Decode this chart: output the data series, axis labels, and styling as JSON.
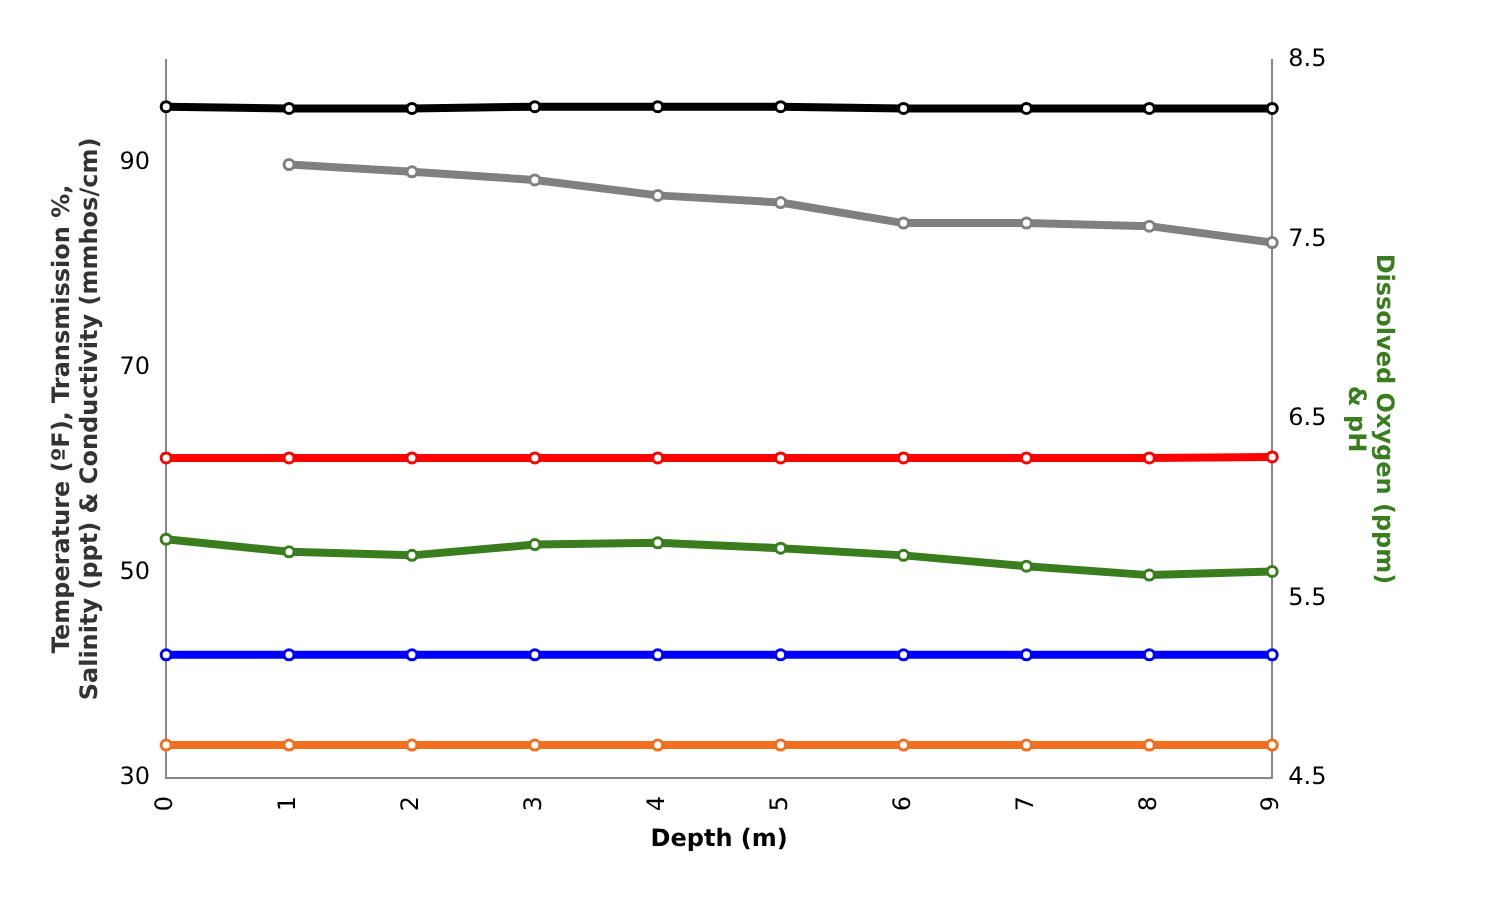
{
  "chart_data": {
    "type": "line",
    "xlabel": "Depth (m)",
    "ylabel": "Temperature (ºF), Transmission %,\nSalinity (ppt) & Conductivity (mmhos/cm)",
    "y2label": "Dissolved Oxygen (ppm)\n& pH",
    "categories": [
      "0",
      "1",
      "2",
      "3",
      "4",
      "5",
      "6",
      "7",
      "8",
      "9"
    ],
    "ylim": [
      30,
      100
    ],
    "yticks": [
      30,
      50,
      70,
      90
    ],
    "y2lim": [
      4.5,
      8.5
    ],
    "y2ticks": [
      4.5,
      5.5,
      6.5,
      7.5,
      8.5
    ],
    "grid": false,
    "legend": false,
    "marker": "circle",
    "line_style": "solid",
    "series": [
      {
        "color": "#000000",
        "axis": "y2",
        "values": [
          8.24,
          8.23,
          8.23,
          8.24,
          8.24,
          8.24,
          8.23,
          8.23,
          8.23,
          8.23
        ]
      },
      {
        "color": "#808080",
        "values": [
          null,
          89.8,
          89.1,
          88.3,
          86.8,
          86.1,
          84.1,
          84.1,
          83.8,
          82.2
        ]
      },
      {
        "color": "#ff0000",
        "values": [
          61.2,
          61.2,
          61.2,
          61.2,
          61.2,
          61.2,
          61.2,
          61.2,
          61.2,
          61.3
        ]
      },
      {
        "color": "#3a7d1e",
        "axis": "y2",
        "values": [
          5.83,
          5.76,
          5.74,
          5.8,
          5.81,
          5.78,
          5.74,
          5.68,
          5.63,
          5.65
        ]
      },
      {
        "color": "#0000ff",
        "values": [
          42,
          42,
          42,
          42,
          42,
          42,
          42,
          42,
          42,
          42
        ]
      },
      {
        "color": "#f07020",
        "values": [
          33.2,
          33.2,
          33.2,
          33.2,
          33.2,
          33.2,
          33.2,
          33.2,
          33.2,
          33.2
        ]
      }
    ]
  }
}
